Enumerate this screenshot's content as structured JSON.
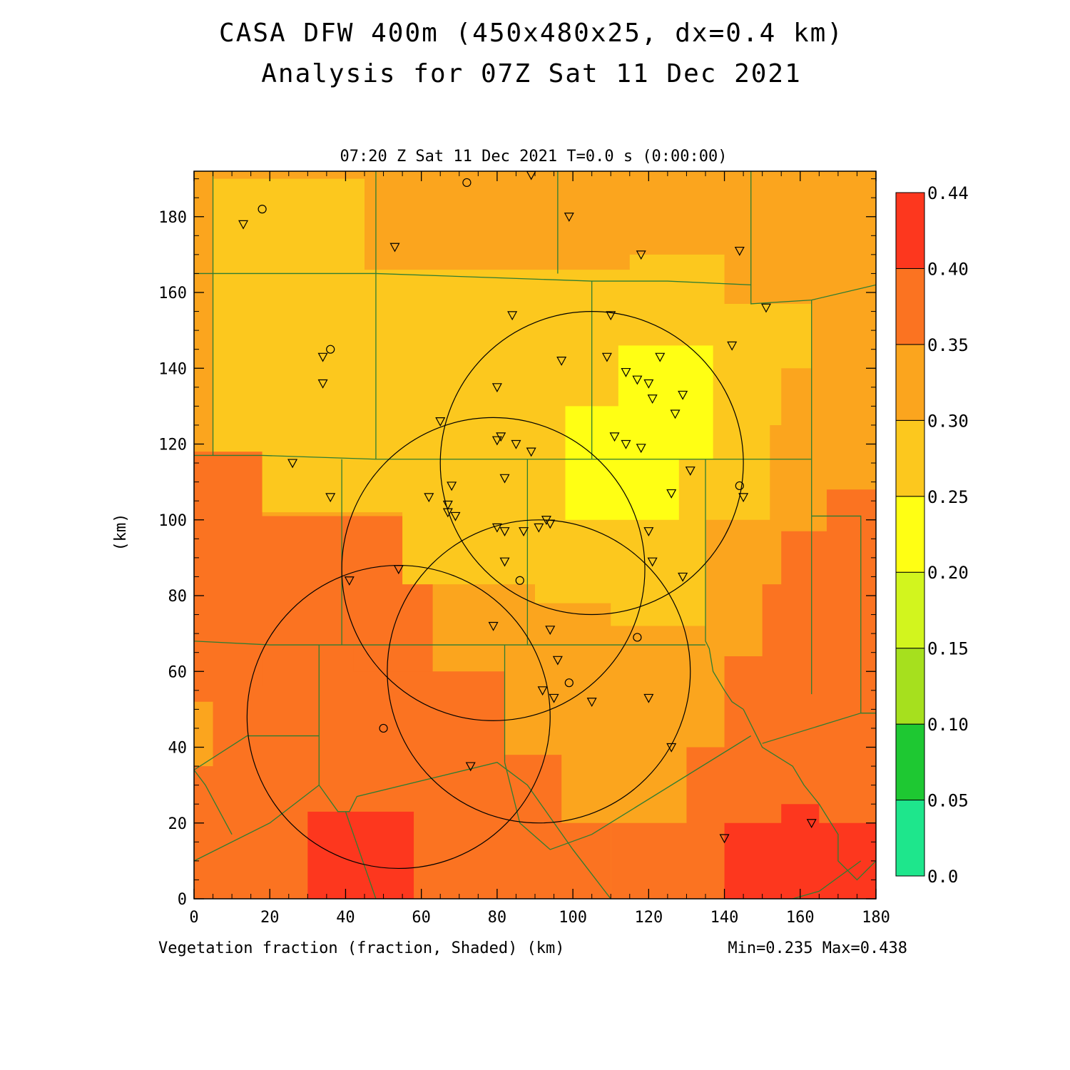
{
  "title": {
    "line1": "CASA DFW 400m (450x480x25, dx=0.4 km)",
    "line2": "Analysis for 07Z Sat 11 Dec 2021"
  },
  "subtitle": "07:20 Z Sat 11 Dec 2021   T=0.0 s (0:00:00)",
  "footer": {
    "xlabel": "Vegetation fraction (fraction, Shaded)  (km)",
    "minmax": "Min=0.235 Max=0.438"
  },
  "chart_data": {
    "type": "heatmap",
    "xlabel": "(km)",
    "ylabel": "(km)",
    "xlim": [
      0,
      180
    ],
    "ylim": [
      0,
      192
    ],
    "x_ticks": [
      "0",
      "20",
      "40",
      "60",
      "80",
      "100",
      "120",
      "140",
      "160",
      "180"
    ],
    "y_ticks": [
      "0",
      "20",
      "40",
      "60",
      "80",
      "100",
      "120",
      "140",
      "160",
      "180"
    ],
    "colorbar": {
      "labels": [
        "0.0",
        "0.05",
        "0.10",
        "0.15",
        "0.20",
        "0.25",
        "0.30",
        "0.35",
        "0.40",
        "0.44"
      ],
      "bins": [
        {
          "from": 0.0,
          "to": 0.05,
          "color": "#1ee68c"
        },
        {
          "from": 0.05,
          "to": 0.1,
          "color": "#1ec832"
        },
        {
          "from": 0.1,
          "to": 0.15,
          "color": "#a6e01e"
        },
        {
          "from": 0.15,
          "to": 0.2,
          "color": "#d2f51e"
        },
        {
          "from": 0.2,
          "to": 0.25,
          "color": "#ffff14"
        },
        {
          "from": 0.25,
          "to": 0.3,
          "color": "#fcc81e"
        },
        {
          "from": 0.3,
          "to": 0.35,
          "color": "#fba51e"
        },
        {
          "from": 0.35,
          "to": 0.4,
          "color": "#fb7321"
        },
        {
          "from": 0.4,
          "to": 0.44,
          "color": "#fd371e"
        }
      ]
    },
    "field_regions": [
      {
        "bin": 0.3,
        "polygon": [
          [
            0,
            192
          ],
          [
            180,
            192
          ],
          [
            180,
            0
          ],
          [
            0,
            0
          ]
        ]
      },
      {
        "bin": 0.35,
        "polygon": [
          [
            0,
            118
          ],
          [
            18,
            118
          ],
          [
            18,
            101
          ],
          [
            63,
            101
          ],
          [
            63,
            52
          ],
          [
            0,
            52
          ]
        ]
      },
      {
        "bin": 0.35,
        "polygon": [
          [
            178,
            0
          ],
          [
            180,
            0
          ],
          [
            180,
            108
          ],
          [
            167,
            108
          ],
          [
            167,
            97
          ],
          [
            155,
            97
          ],
          [
            155,
            83
          ],
          [
            150,
            83
          ],
          [
            150,
            64
          ],
          [
            140,
            64
          ],
          [
            140,
            40
          ],
          [
            130,
            40
          ],
          [
            130,
            20
          ],
          [
            110,
            20
          ],
          [
            110,
            0
          ]
        ]
      },
      {
        "bin": 0.35,
        "polygon": [
          [
            0,
            0
          ],
          [
            110,
            0
          ],
          [
            110,
            20
          ],
          [
            97,
            20
          ],
          [
            97,
            38
          ],
          [
            82,
            38
          ],
          [
            82,
            60
          ],
          [
            42,
            60
          ],
          [
            42,
            68
          ],
          [
            18,
            68
          ],
          [
            18,
            56
          ],
          [
            5,
            56
          ],
          [
            5,
            35
          ],
          [
            0,
            35
          ]
        ]
      },
      {
        "bin": 0.4,
        "polygon": [
          [
            30,
            0
          ],
          [
            58,
            0
          ],
          [
            58,
            23
          ],
          [
            30,
            23
          ]
        ]
      },
      {
        "bin": 0.4,
        "polygon": [
          [
            140,
            0
          ],
          [
            180,
            0
          ],
          [
            180,
            20
          ],
          [
            165,
            20
          ],
          [
            165,
            25
          ],
          [
            155,
            25
          ],
          [
            155,
            20
          ],
          [
            140,
            20
          ]
        ]
      },
      {
        "bin": 0.25,
        "polygon": [
          [
            5,
            190
          ],
          [
            45,
            190
          ],
          [
            45,
            166
          ],
          [
            115,
            166
          ],
          [
            115,
            170
          ],
          [
            140,
            170
          ],
          [
            140,
            157
          ],
          [
            163,
            157
          ],
          [
            163,
            140
          ],
          [
            155,
            140
          ],
          [
            155,
            125
          ],
          [
            152,
            125
          ],
          [
            152,
            100
          ],
          [
            135,
            100
          ],
          [
            135,
            72
          ],
          [
            110,
            72
          ],
          [
            110,
            78
          ],
          [
            90,
            78
          ],
          [
            90,
            83
          ],
          [
            55,
            83
          ],
          [
            55,
            102
          ],
          [
            18,
            102
          ],
          [
            18,
            118
          ],
          [
            5,
            118
          ]
        ]
      },
      {
        "bin": 0.2,
        "polygon": [
          [
            98,
            130
          ],
          [
            112,
            130
          ],
          [
            112,
            146
          ],
          [
            137,
            146
          ],
          [
            137,
            116
          ],
          [
            128,
            116
          ],
          [
            128,
            100
          ],
          [
            98,
            100
          ]
        ]
      }
    ],
    "radar_rings": [
      {
        "center": [
          105,
          115
        ],
        "radius": 40
      },
      {
        "center": [
          79,
          87
        ],
        "radius": 40
      },
      {
        "center": [
          91,
          60
        ],
        "radius": 40
      },
      {
        "center": [
          54,
          48
        ],
        "radius": 40
      }
    ],
    "stations_triangle": [
      [
        89,
        191
      ],
      [
        13,
        178
      ],
      [
        99,
        180
      ],
      [
        53,
        172
      ],
      [
        118,
        170
      ],
      [
        144,
        171
      ],
      [
        151,
        156
      ],
      [
        84,
        154
      ],
      [
        110,
        154
      ],
      [
        142,
        146
      ],
      [
        34,
        143
      ],
      [
        97,
        142
      ],
      [
        109,
        143
      ],
      [
        123,
        143
      ],
      [
        114,
        139
      ],
      [
        117,
        137
      ],
      [
        120,
        136
      ],
      [
        80,
        135
      ],
      [
        121,
        132
      ],
      [
        129,
        133
      ],
      [
        127,
        128
      ],
      [
        65,
        126
      ],
      [
        80,
        121
      ],
      [
        81,
        122
      ],
      [
        111,
        122
      ],
      [
        114,
        120
      ],
      [
        85,
        120
      ],
      [
        89,
        118
      ],
      [
        118,
        119
      ],
      [
        26,
        115
      ],
      [
        34,
        136
      ],
      [
        131,
        113
      ],
      [
        68,
        109
      ],
      [
        82,
        111
      ],
      [
        62,
        106
      ],
      [
        67,
        104
      ],
      [
        126,
        107
      ],
      [
        36,
        106
      ],
      [
        67,
        102
      ],
      [
        69,
        101
      ],
      [
        93,
        100
      ],
      [
        94,
        99
      ],
      [
        145,
        106
      ],
      [
        80,
        98
      ],
      [
        82,
        97
      ],
      [
        87,
        97
      ],
      [
        91,
        98
      ],
      [
        120,
        97
      ],
      [
        54,
        87
      ],
      [
        82,
        89
      ],
      [
        121,
        89
      ],
      [
        41,
        84
      ],
      [
        129,
        85
      ],
      [
        79,
        72
      ],
      [
        94,
        71
      ],
      [
        96,
        63
      ],
      [
        92,
        55
      ],
      [
        95,
        53
      ],
      [
        105,
        52
      ],
      [
        120,
        53
      ],
      [
        126,
        40
      ],
      [
        73,
        35
      ],
      [
        140,
        16
      ],
      [
        163,
        20
      ]
    ],
    "stations_circle": [
      [
        18,
        182
      ],
      [
        72,
        189
      ],
      [
        36,
        145
      ],
      [
        144,
        109
      ],
      [
        86,
        84
      ],
      [
        117,
        69
      ],
      [
        99,
        57
      ],
      [
        50,
        45
      ]
    ],
    "boundaries": [
      [
        [
          0,
          165
        ],
        [
          12,
          165
        ],
        [
          48,
          165
        ],
        [
          105,
          163
        ],
        [
          125,
          163
        ],
        [
          147,
          162
        ],
        [
          147,
          157
        ],
        [
          163,
          158
        ],
        [
          180,
          162
        ]
      ],
      [
        [
          0,
          117
        ],
        [
          18,
          117
        ],
        [
          48,
          116
        ],
        [
          85,
          116
        ],
        [
          105,
          116
        ],
        [
          115,
          116
        ],
        [
          135,
          116
        ],
        [
          150,
          116
        ],
        [
          163,
          116
        ]
      ],
      [
        [
          0,
          68
        ],
        [
          20,
          67
        ],
        [
          33,
          67
        ],
        [
          50,
          67
        ],
        [
          65,
          67
        ],
        [
          82,
          67
        ],
        [
          108,
          67
        ],
        [
          135,
          67
        ]
      ],
      [
        [
          5,
          192
        ],
        [
          5,
          165
        ],
        [
          5,
          117
        ]
      ],
      [
        [
          48,
          192
        ],
        [
          48,
          165
        ]
      ],
      [
        [
          48,
          165
        ],
        [
          48,
          116
        ]
      ],
      [
        [
          96,
          192
        ],
        [
          96,
          165
        ]
      ],
      [
        [
          105,
          163
        ],
        [
          105,
          116
        ]
      ],
      [
        [
          147,
          192
        ],
        [
          147,
          162
        ]
      ],
      [
        [
          39,
          116
        ],
        [
          39,
          67
        ]
      ],
      [
        [
          88,
          116
        ],
        [
          88,
          67
        ]
      ],
      [
        [
          135,
          116
        ],
        [
          135,
          68
        ],
        [
          136,
          66
        ],
        [
          137,
          60
        ],
        [
          140,
          55
        ],
        [
          142,
          52
        ],
        [
          145,
          50
        ]
      ],
      [
        [
          163,
          158
        ],
        [
          163,
          101
        ],
        [
          163,
          64
        ],
        [
          163,
          54
        ]
      ],
      [
        [
          33,
          67
        ],
        [
          33,
          43
        ],
        [
          33,
          30
        ]
      ],
      [
        [
          82,
          67
        ],
        [
          82,
          36
        ]
      ],
      [
        [
          0,
          34
        ],
        [
          14,
          43
        ],
        [
          33,
          43
        ]
      ],
      [
        [
          0,
          10
        ],
        [
          20,
          20
        ],
        [
          33,
          30
        ],
        [
          38,
          23
        ],
        [
          41,
          23
        ],
        [
          43,
          27
        ],
        [
          80,
          36
        ],
        [
          88,
          30
        ],
        [
          100,
          13
        ],
        [
          110,
          0
        ]
      ],
      [
        [
          10,
          17
        ],
        [
          3,
          30
        ],
        [
          0,
          34
        ]
      ],
      [
        [
          82,
          36
        ],
        [
          86,
          20
        ],
        [
          94,
          13
        ],
        [
          105,
          17
        ],
        [
          147,
          43
        ]
      ],
      [
        [
          145,
          50
        ],
        [
          150,
          40
        ],
        [
          158,
          35
        ],
        [
          161,
          30
        ],
        [
          165,
          25
        ],
        [
          170,
          17
        ],
        [
          170,
          10
        ],
        [
          175,
          5
        ],
        [
          180,
          10
        ]
      ],
      [
        [
          163,
          101
        ],
        [
          176,
          101
        ],
        [
          176,
          87
        ],
        [
          176,
          49
        ],
        [
          180,
          49
        ]
      ],
      [
        [
          150,
          41
        ],
        [
          176,
          49
        ]
      ],
      [
        [
          176,
          10
        ],
        [
          165,
          2
        ],
        [
          158,
          0
        ]
      ],
      [
        [
          40,
          23
        ],
        [
          48,
          0
        ]
      ]
    ]
  }
}
